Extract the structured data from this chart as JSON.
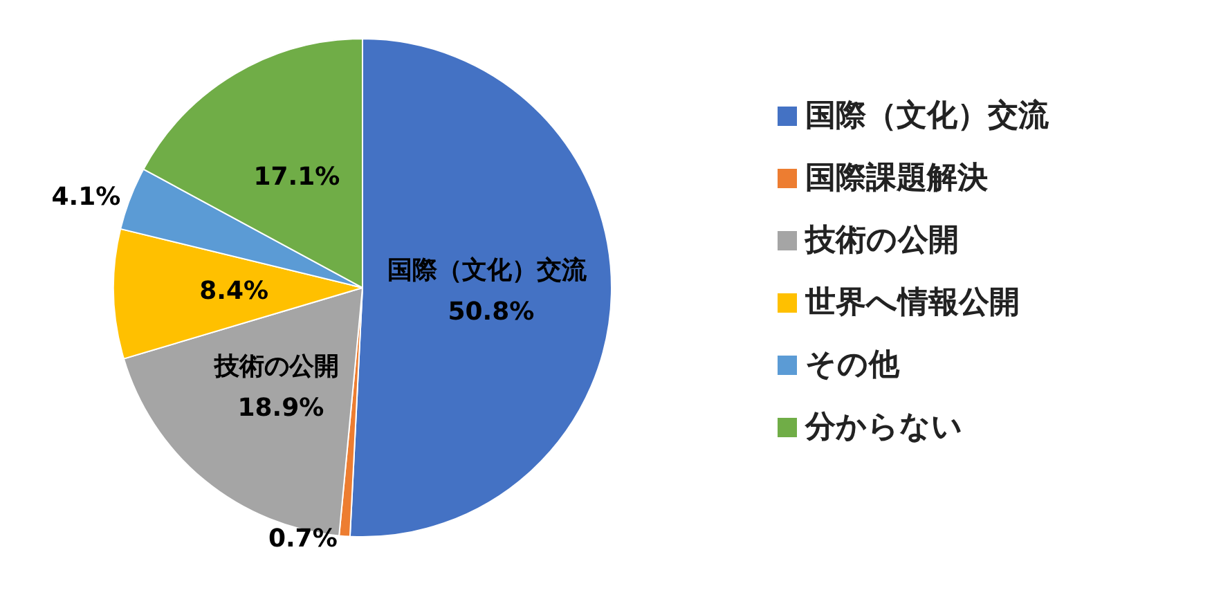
{
  "chart_data": {
    "type": "pie",
    "categories": [
      "国際（文化）交流",
      "国際課題解決",
      "技術の公開",
      "世界へ情報公開",
      "その他",
      "分からない"
    ],
    "values": [
      50.8,
      0.7,
      18.9,
      8.4,
      4.1,
      17.1
    ],
    "colors": [
      "#4472c4",
      "#ed7d31",
      "#a5a5a5",
      "#ffc000",
      "#5b9bd5",
      "#70ad47"
    ],
    "value_labels": [
      "国際（文化）交流 50.8%",
      "0.7%",
      "技術の公開 18.9%",
      "8.4%",
      "4.1%",
      "17.1%"
    ],
    "legend": "right"
  }
}
